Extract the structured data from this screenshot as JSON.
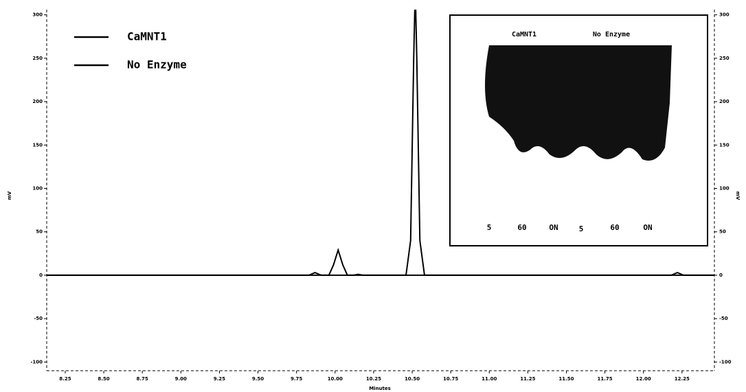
{
  "chart_data": {
    "type": "line",
    "x_label": "Minutes",
    "y_label": "mV",
    "y2_label": "mV",
    "xlim": [
      8.13,
      12.46
    ],
    "xticks": [
      8.25,
      {
        "value": 8.5,
        "label": "8.50"
      },
      8.75,
      {
        "value": 9,
        "label": "9.00"
      },
      9.25,
      {
        "value": 9.5,
        "label": "9.50"
      },
      9.75,
      {
        "value": 10,
        "label": "10.00"
      },
      10.25,
      {
        "value": 10.5,
        "label": "10.50"
      },
      10.75,
      {
        "value": 11,
        "label": "11.00"
      },
      11.25,
      {
        "value": 11.5,
        "label": "11.50"
      },
      11.75,
      {
        "value": 12,
        "label": "12.00"
      },
      12.25
    ],
    "ylim": [
      -110,
      306
    ],
    "yticks": [
      -100,
      -50,
      0,
      50,
      100,
      150,
      200,
      250,
      300
    ],
    "y2lim": [
      -110,
      306
    ],
    "y2ticks": [
      -100,
      -50,
      0,
      50,
      100,
      150,
      200,
      250,
      300
    ],
    "legend": "upper left",
    "series": [
      {
        "name": "CaMNT1",
        "color": "#000000",
        "x": [
          8.13,
          9.83,
          9.87,
          9.91,
          9.96,
          9.99,
          10.02,
          10.05,
          10.08,
          10.12,
          10.15,
          10.18,
          10.46,
          10.49,
          10.51,
          10.52,
          10.53,
          10.55,
          10.58,
          12.18,
          12.22,
          12.26,
          12.46
        ],
        "values": [
          0,
          0,
          3,
          0,
          0,
          12,
          29,
          12,
          0,
          0,
          1,
          0,
          0,
          40,
          250,
          330,
          250,
          40,
          0,
          0,
          3,
          0,
          0
        ]
      },
      {
        "name": "No Enzyme",
        "color": "#000000",
        "x": [
          8.13,
          10.0,
          11.0,
          12.46
        ],
        "values": [
          0,
          0,
          0,
          0
        ]
      }
    ],
    "inset": {
      "headers": [
        "CaMNT1",
        "No Enzyme"
      ],
      "lanes": [
        "5",
        "60",
        "ON",
        "5",
        "60",
        "ON"
      ]
    }
  }
}
